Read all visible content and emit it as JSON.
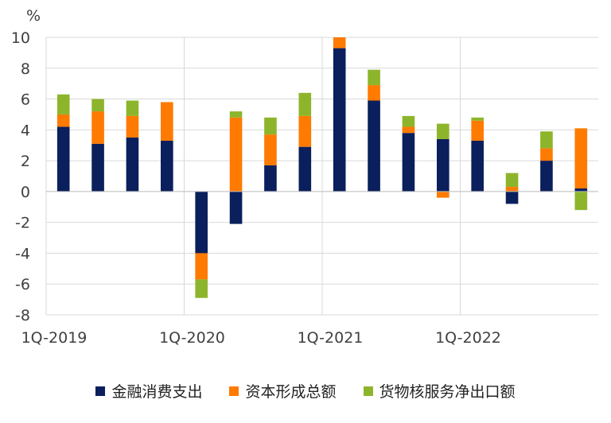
{
  "chart_data": {
    "type": "bar",
    "stacked": true,
    "ylabel": "%",
    "ylim": [
      -8,
      10
    ],
    "yticks": [
      -8,
      -6,
      -4,
      -2,
      0,
      2,
      4,
      6,
      8,
      10
    ],
    "grid": true,
    "legend_position": "bottom",
    "x_tick_labels": [
      {
        "label": "1Q-2019",
        "index": 0
      },
      {
        "label": "1Q-2020",
        "index": 4
      },
      {
        "label": "1Q-2021",
        "index": 8
      },
      {
        "label": "1Q-2022",
        "index": 12
      }
    ],
    "categories": [
      "1Q-2019",
      "2Q-2019",
      "3Q-2019",
      "4Q-2019",
      "1Q-2020",
      "2Q-2020",
      "3Q-2020",
      "4Q-2020",
      "1Q-2021",
      "2Q-2021",
      "3Q-2021",
      "4Q-2021",
      "1Q-2022",
      "2Q-2022",
      "3Q-2022",
      "4Q-2022"
    ],
    "series": [
      {
        "name": "金融消费支出",
        "color": "#0a1f5c",
        "values": [
          4.2,
          3.1,
          3.5,
          3.3,
          -4.0,
          -2.1,
          1.7,
          2.9,
          9.3,
          5.9,
          3.8,
          3.4,
          3.3,
          -0.8,
          2.0,
          0.2
        ]
      },
      {
        "name": "资本形成总额",
        "color": "#ff7a00",
        "values": [
          0.8,
          2.1,
          1.4,
          2.5,
          -1.7,
          4.8,
          2.0,
          2.0,
          0.7,
          1.0,
          0.4,
          -0.4,
          1.3,
          0.3,
          0.8,
          3.9
        ]
      },
      {
        "name": "货物核服务净出口额",
        "color": "#8db52b",
        "values": [
          1.3,
          0.8,
          1.0,
          0.0,
          -1.2,
          0.4,
          1.1,
          1.5,
          0.0,
          1.0,
          0.7,
          1.0,
          0.2,
          0.9,
          1.1,
          -1.2
        ]
      }
    ]
  }
}
